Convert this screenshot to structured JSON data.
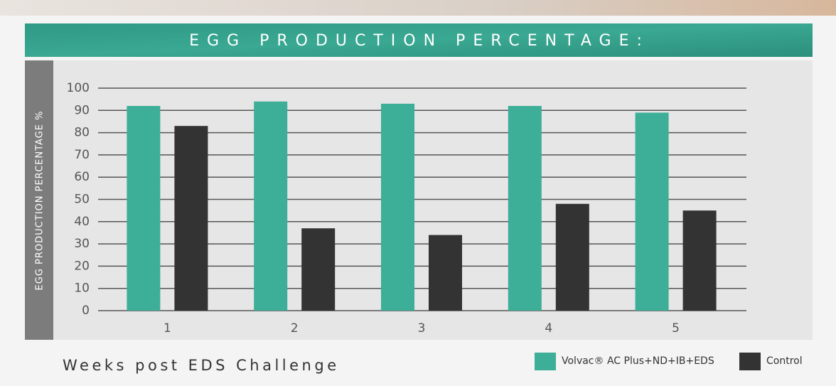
{
  "chart_data": {
    "type": "bar",
    "title": "EGG PRODUCTION PERCENTAGE:",
    "y_label": "EGG PRODUCTION PERCENTAGE %",
    "x_label": "Weeks post EDS Challenge",
    "categories": [
      "1",
      "2",
      "3",
      "4",
      "5"
    ],
    "series": [
      {
        "name": "Volvac® AC Plus+ND+IB+EDS",
        "color": "#3dae98",
        "values": [
          92,
          94,
          93,
          92,
          89
        ]
      },
      {
        "name": "Control",
        "color": "#333333",
        "values": [
          83,
          37,
          34,
          48,
          45
        ]
      }
    ],
    "ylim": [
      0,
      100
    ],
    "yticks": [
      0,
      10,
      20,
      30,
      40,
      50,
      60,
      70,
      80,
      90,
      100
    ],
    "grid": true
  }
}
